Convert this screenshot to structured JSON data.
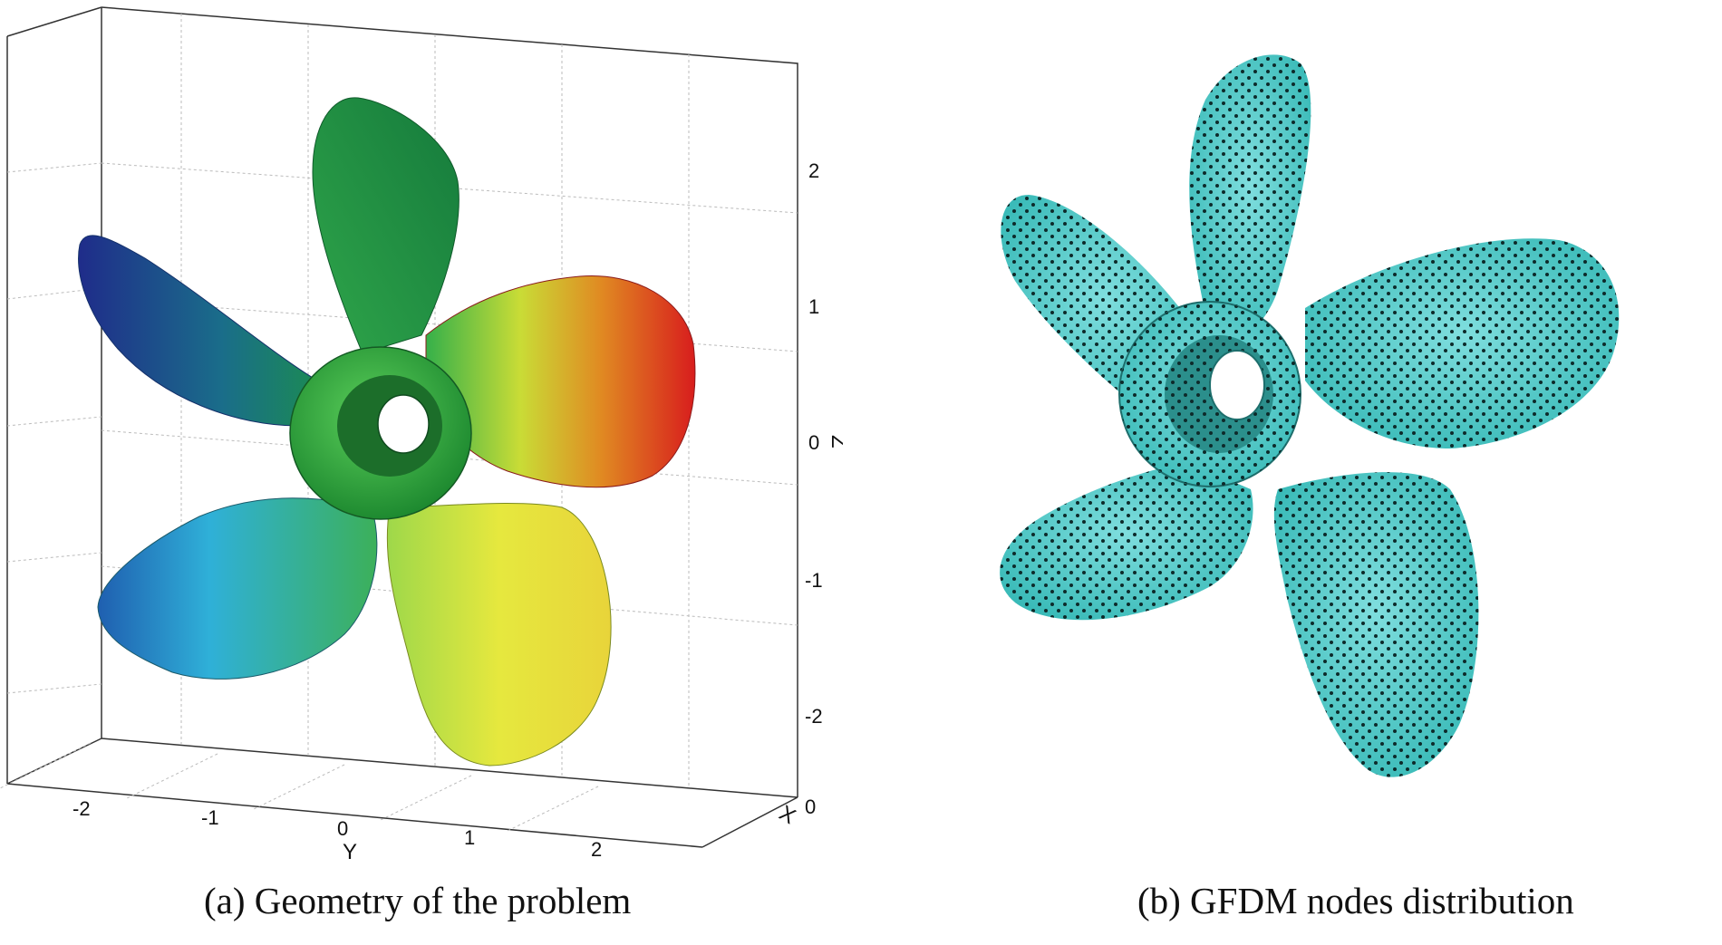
{
  "panel_a": {
    "caption": "(a) Geometry of the problem",
    "z_axis": {
      "label": "Z",
      "ticks": [
        "2",
        "1",
        "0",
        "-1",
        "-2"
      ]
    },
    "y_axis": {
      "label": "Y",
      "ticks": [
        "-2",
        "-1",
        "0",
        "1",
        "2"
      ]
    },
    "x_axis": {
      "label": "X",
      "ticks": [
        "0"
      ]
    },
    "colors": {
      "blade_top": "#1b8a3c",
      "blade_left": "#1f2c8a",
      "blade_right": "#d81d1d",
      "blade_lower_left": "#2aa0c8",
      "blade_lower_right": "#e8e83c",
      "hub": "#2ea83c"
    }
  },
  "panel_b": {
    "caption": "(b) GFDM nodes distribution",
    "colors": {
      "surface": "#3ec7c4",
      "nodes": "#0d2a2a"
    }
  }
}
